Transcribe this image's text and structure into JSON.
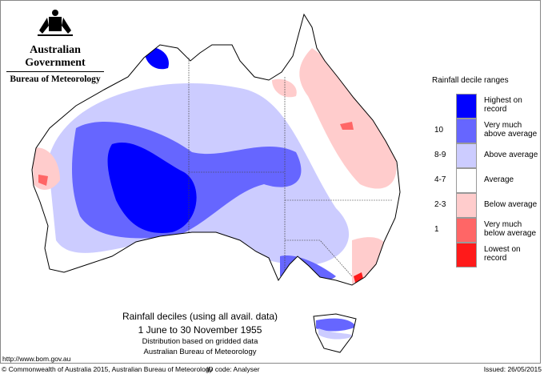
{
  "branding": {
    "government": "Australian Government",
    "bureau": "Bureau of Meteorology"
  },
  "legend": {
    "title": "Rainfall decile ranges",
    "items": [
      {
        "code": "",
        "label1": "Highest on",
        "label2": "record",
        "color": "#0000ff"
      },
      {
        "code": "10",
        "label1": "Very much",
        "label2": "above average",
        "color": "#6666ff"
      },
      {
        "code": "8-9",
        "label1": "Above average",
        "label2": "",
        "color": "#ccccff"
      },
      {
        "code": "4-7",
        "label1": "Average",
        "label2": "",
        "color": "#ffffff"
      },
      {
        "code": "2-3",
        "label1": "Below average",
        "label2": "",
        "color": "#ffcccc"
      },
      {
        "code": "1",
        "label1": "Very much",
        "label2": "below average",
        "color": "#ff6666"
      },
      {
        "code": "",
        "label1": "Lowest on",
        "label2": "record",
        "color": "#ff1a1a"
      }
    ]
  },
  "caption": {
    "title": "Rainfall deciles (using all avail. data)",
    "period": "1 June to 30 November 1955",
    "note1": "Distribution based on gridded data",
    "note2": "Australian Bureau of Meteorology"
  },
  "url": "http://www.bom.gov.au",
  "footer": {
    "copyright": "© Commonwealth of Australia 2015, Australian Bureau of Meteorology",
    "id_code": "ID code: Analyser",
    "issued": "Issued: 26/05/2015"
  }
}
